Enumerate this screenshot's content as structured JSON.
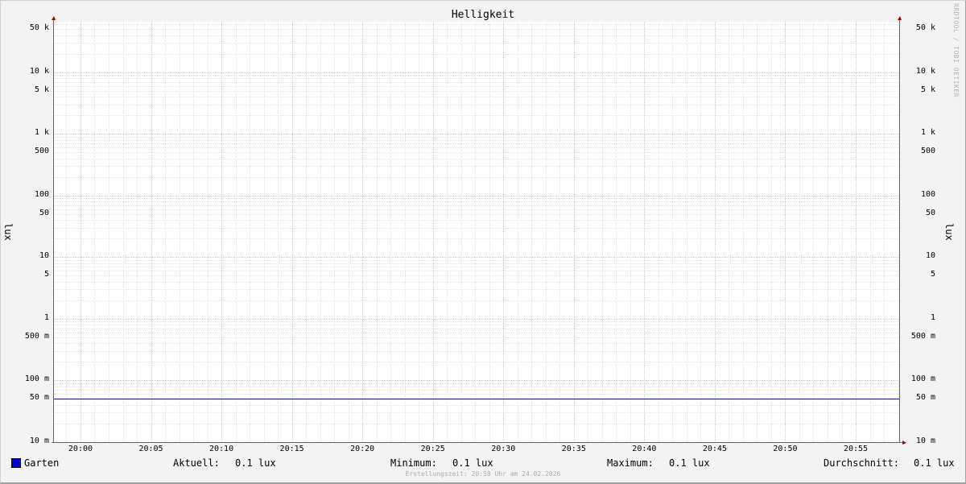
{
  "chart_data": {
    "type": "line",
    "title": "Helligkeit",
    "ylabel": "lux",
    "yscale": "log",
    "ylim": [
      0.01,
      66000
    ],
    "xlim": [
      "19:58:07",
      "20:58:05"
    ],
    "grid": true,
    "yticks": [
      {
        "v": 50000,
        "label": "50 k"
      },
      {
        "v": 10000,
        "label": "10 k"
      },
      {
        "v": 5000,
        "label": "5 k"
      },
      {
        "v": 1000,
        "label": "1 k"
      },
      {
        "v": 500,
        "label": "500"
      },
      {
        "v": 100,
        "label": "100"
      },
      {
        "v": 50,
        "label": "50"
      },
      {
        "v": 10,
        "label": "10"
      },
      {
        "v": 5,
        "label": "5"
      },
      {
        "v": 1,
        "label": "1"
      },
      {
        "v": 0.5,
        "label": "500 m"
      },
      {
        "v": 0.1,
        "label": "100 m"
      },
      {
        "v": 0.05,
        "label": "50 m"
      },
      {
        "v": 0.01,
        "label": "10 m"
      }
    ],
    "xticks": [
      "20:00",
      "20:05",
      "20:10",
      "20:15",
      "20:20",
      "20:25",
      "20:30",
      "20:35",
      "20:40",
      "20:45",
      "20:50",
      "20:55"
    ],
    "series": [
      {
        "name": "Garten",
        "color": "#0000cc",
        "x": [
          "19:58:07",
          "20:58:05"
        ],
        "y": [
          0.05,
          0.05
        ]
      }
    ]
  },
  "legend": {
    "series": "Garten",
    "current_label": "Aktuell:",
    "current": "0.1 lux",
    "min_label": "Minimum:",
    "min": "0.1 lux",
    "max_label": "Maximum:",
    "max": "0.1 lux",
    "avg_label": "Durchschnitt:",
    "avg": "0.1 lux"
  },
  "footer": "Erstellungszeit: 20:58 Uhr am 24.02.2026",
  "watermark": "RRDTOOL / TOBI OETIKER"
}
